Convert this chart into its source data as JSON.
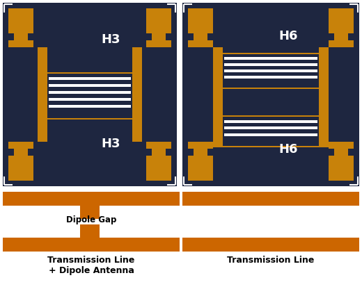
{
  "bg_dark": "#1e2640",
  "bg_white": "#ffffff",
  "gold": "#c8820a",
  "white": "#ffffff",
  "orange": "#cc6600",
  "fig_width": 5.2,
  "fig_height": 4.26,
  "label_h3": "H3",
  "label_h6": "H6",
  "title_left": "Transmission Line\n+ Dipole Antenna",
  "title_right": "Transmission Line",
  "dipole_gap_label": "Dipole Gap"
}
